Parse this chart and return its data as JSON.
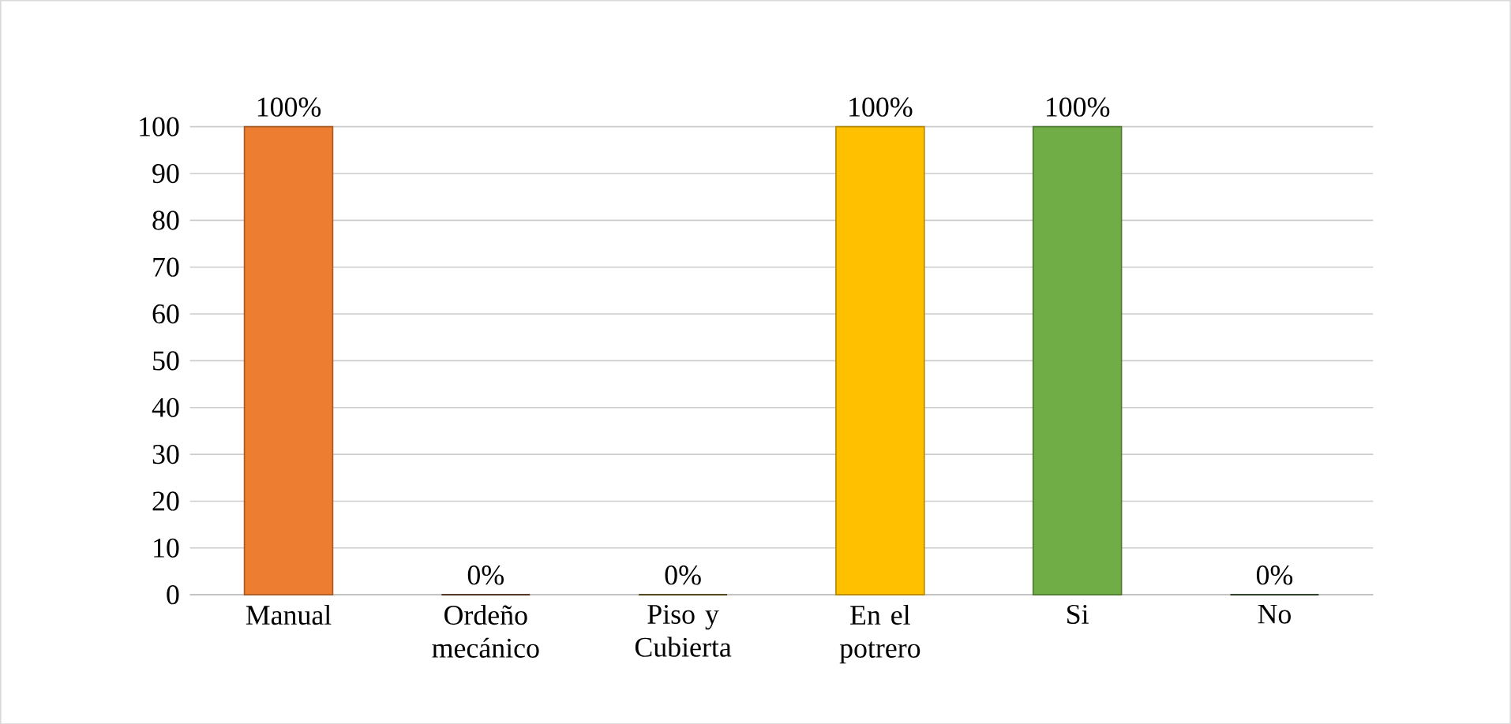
{
  "chart_data": {
    "type": "bar",
    "categories": [
      "Manual",
      "Ordeño mecánico",
      "Piso y Cubierta",
      "En el potrero",
      "Si",
      "No"
    ],
    "values": [
      100,
      0,
      0,
      100,
      100,
      0
    ],
    "colors": [
      "#ed7d31",
      "#5a2a0a",
      "#5c4300",
      "#ffc000",
      "#70ad47",
      "#1e3a10"
    ],
    "value_labels": [
      "100%",
      "0%",
      "0%",
      "100%",
      "100%",
      "0%"
    ],
    "ylim": [
      0,
      100
    ],
    "yticks": [
      0,
      10,
      20,
      30,
      40,
      50,
      60,
      70,
      80,
      90,
      100
    ],
    "grid": "y"
  }
}
